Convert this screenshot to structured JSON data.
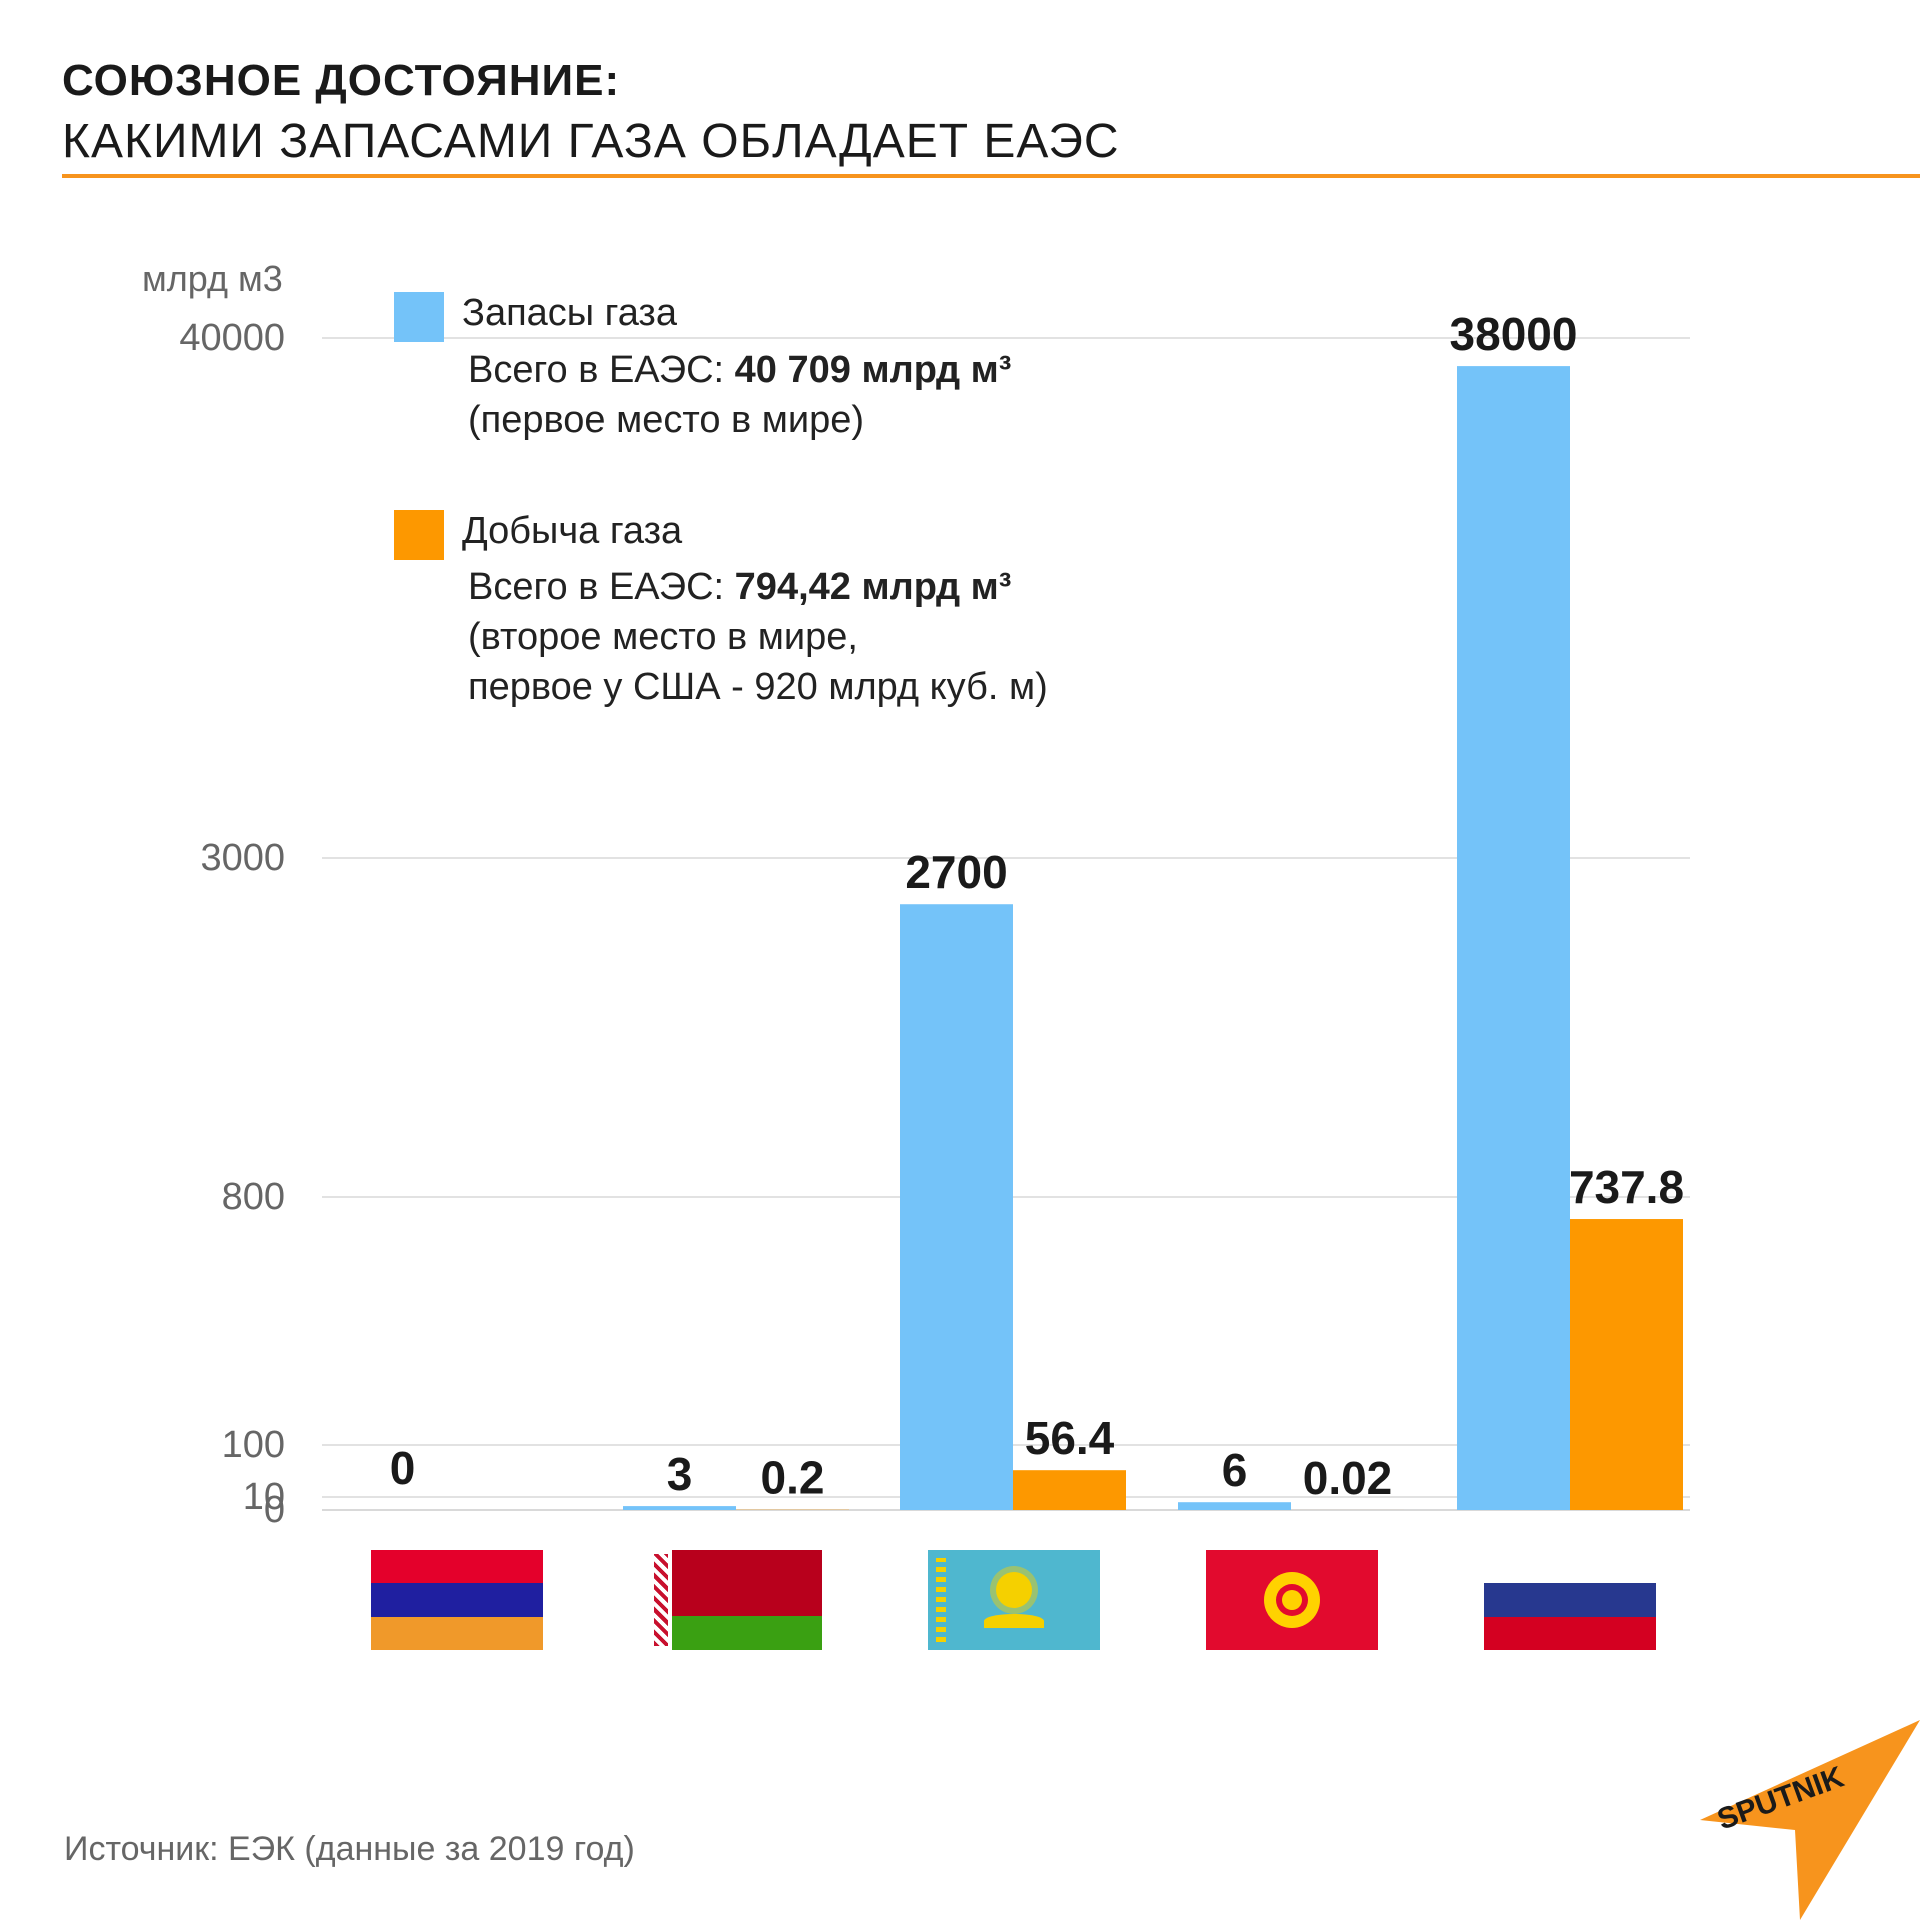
{
  "header": {
    "title": "СОЮЗНОЕ ДОСТОЯНИЕ:",
    "subtitle": "КАКИМИ ЗАПАСАМИ ГАЗА ОБЛАДАЕТ ЕАЭС"
  },
  "legend": {
    "reserves_name": "Запасы газа",
    "reserves_prefix": "Всего в ЕАЭС: ",
    "reserves_total": "40 709 млрд м³",
    "reserves_note": "(первое место в мире)",
    "production_name": "Добыча газа",
    "production_prefix": "Всего в ЕАЭС: ",
    "production_total": "794,42 млрд м³",
    "production_note1": "(второе место в мире,",
    "production_note2": "первое у США - 920 млрд куб. м)"
  },
  "source": "Источник:  ЕЭК (данные за 2019 год)",
  "logo_text": "SPUTNIK",
  "colors": {
    "reserves": "#74c3f9",
    "production": "#fd9800",
    "accent": "#f7941d",
    "grid": "#d9d9d9"
  },
  "chart_data": {
    "type": "bar",
    "title": "",
    "ylabel": "млрд м3",
    "xlabel": "",
    "scale": "piecewise",
    "ylim": [
      0,
      40000
    ],
    "yticks": [
      0,
      10,
      100,
      800,
      3000,
      40000
    ],
    "legend_position": "top-left",
    "grid": true,
    "categories": [
      "Армения",
      "Беларусь",
      "Казахстан",
      "Кыргызстан",
      "Россия"
    ],
    "series": [
      {
        "name": "Запасы газа",
        "values": [
          0,
          3,
          2700,
          6,
          38000
        ],
        "labels": [
          "0",
          "3",
          "2700",
          "6",
          "38000"
        ]
      },
      {
        "name": "Добыча газа",
        "values": [
          0,
          0.2,
          56.4,
          0.02,
          737.8
        ],
        "labels": [
          "",
          "0.2",
          "56.4",
          "0.02",
          "737.8"
        ]
      }
    ]
  }
}
